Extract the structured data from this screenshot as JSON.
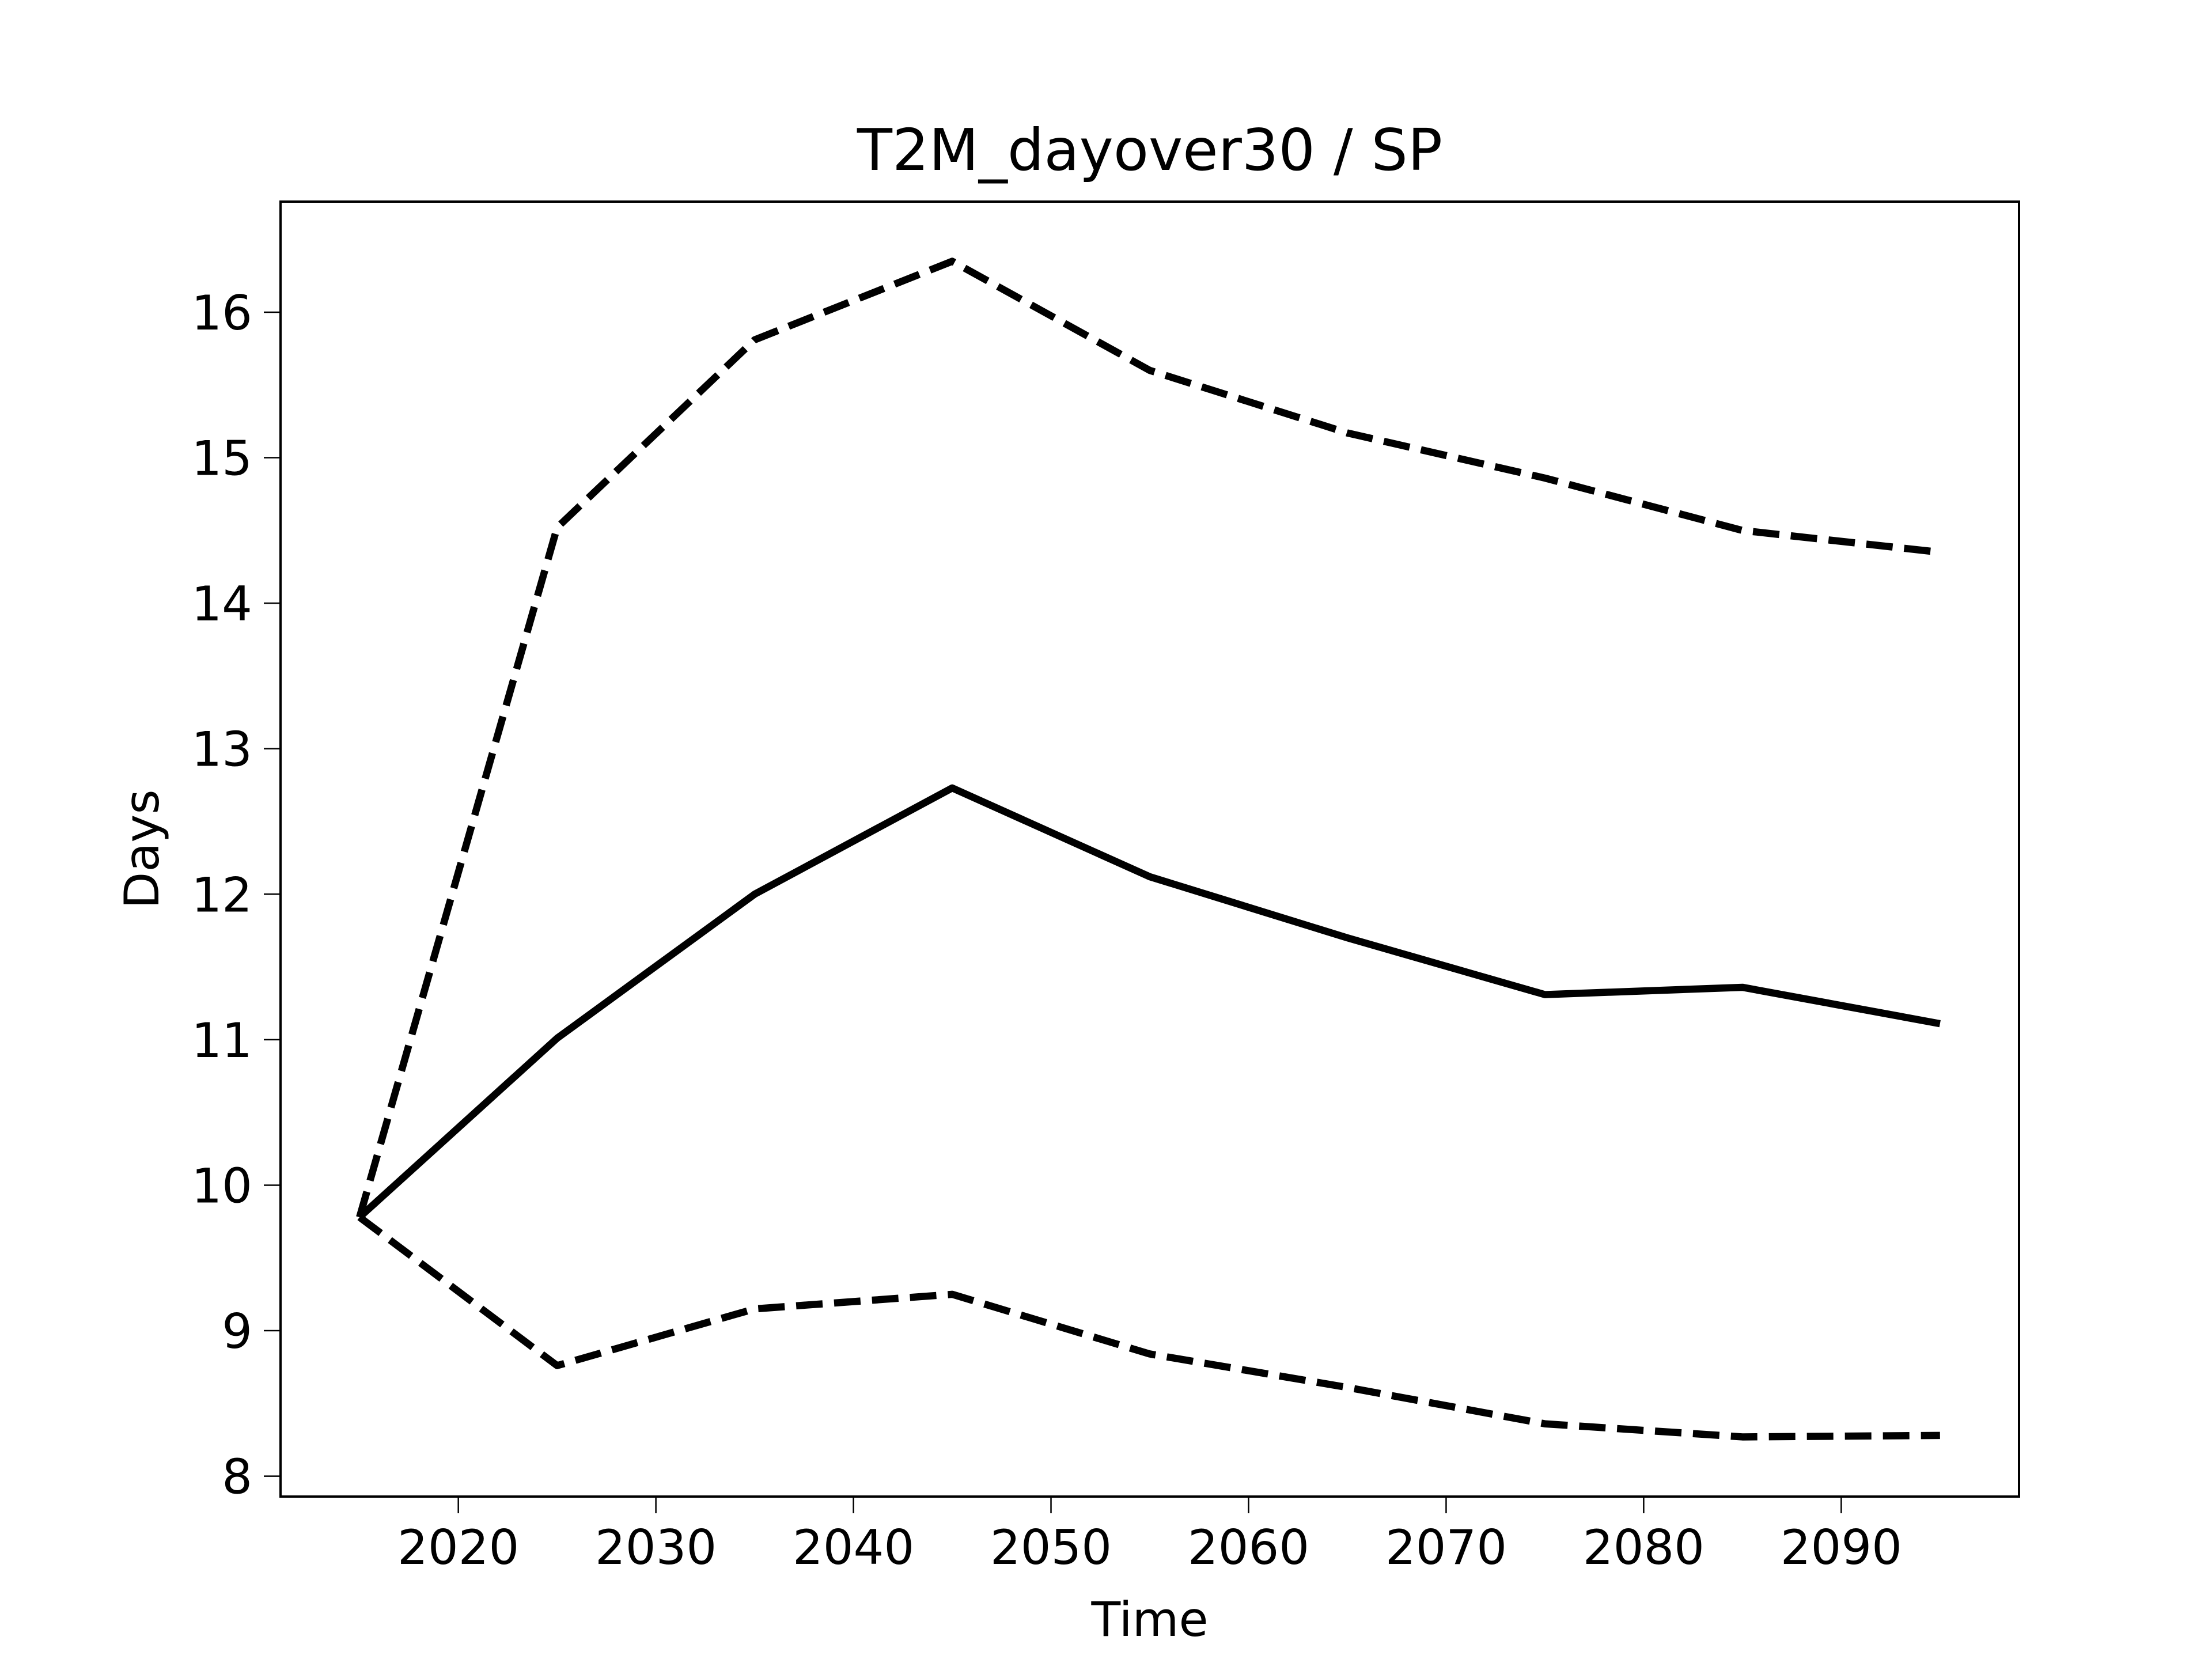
{
  "chart_data": {
    "type": "line",
    "title": "T2M_dayover30 / SP",
    "xlabel": "Time",
    "ylabel": "Days",
    "x": [
      2015,
      2025,
      2035,
      2045,
      2055,
      2065,
      2075,
      2085,
      2095
    ],
    "series": [
      {
        "color": "#000000",
        "dashed": false,
        "values": [
          9.78,
          11.01,
          12.0,
          12.73,
          12.12,
          11.7,
          11.31,
          11.36,
          11.11
        ]
      },
      {
        "color": "#000000",
        "dashed": true,
        "values": [
          9.78,
          14.52,
          15.81,
          16.35,
          15.6,
          15.17,
          14.86,
          14.5,
          14.35
        ]
      },
      {
        "color": "#000000",
        "dashed": true,
        "values": [
          9.78,
          8.76,
          9.15,
          9.25,
          8.84,
          8.61,
          8.36,
          8.27,
          8.28
        ]
      }
    ],
    "xlim": [
      2011,
      2099
    ],
    "xticks": [
      2020,
      2030,
      2040,
      2050,
      2060,
      2070,
      2080,
      2090
    ],
    "ylim": [
      7.86,
      16.76
    ],
    "yticks": [
      8,
      9,
      10,
      11,
      12,
      13,
      14,
      15,
      16
    ],
    "grid": false
  }
}
